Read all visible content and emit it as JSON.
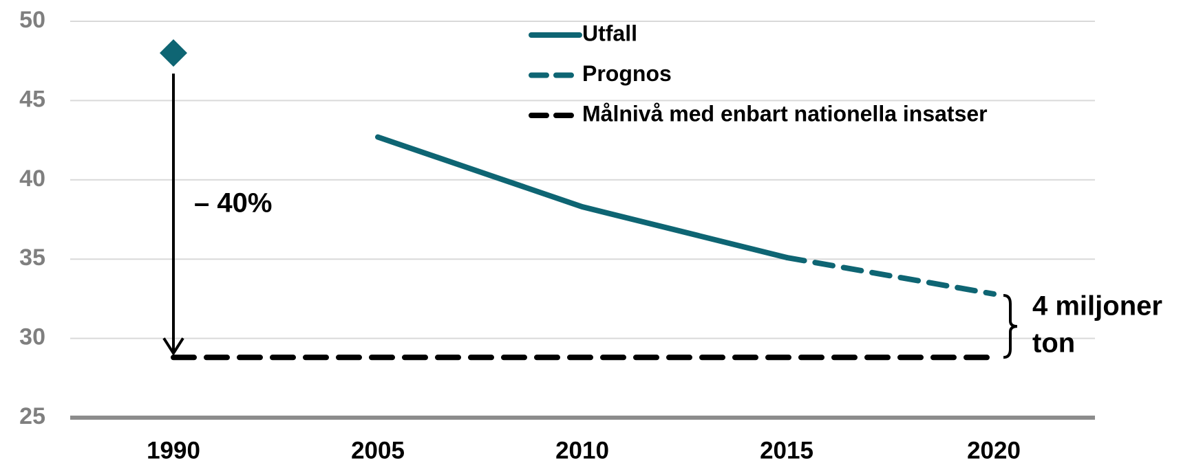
{
  "chart_data": {
    "type": "line",
    "categories": [
      "1990",
      "2005",
      "2010",
      "2015",
      "2020"
    ],
    "series": [
      {
        "name": "Utfall",
        "color": "#0e6573",
        "dash": "solid",
        "values": [
          null,
          42.7,
          38.3,
          35.1,
          null
        ]
      },
      {
        "name": "Prognos",
        "color": "#0e6573",
        "dash": "dashed",
        "values": [
          null,
          null,
          null,
          35.1,
          32.8
        ]
      },
      {
        "name": "Målnivå med enbart nationella insatser",
        "color": "#000000",
        "dash": "dashed",
        "values": [
          28.8,
          28.8,
          28.8,
          28.8,
          28.8
        ]
      }
    ],
    "points": [
      {
        "category_index": 0,
        "value": 48,
        "color": "#0e6573",
        "marker": "diamond"
      }
    ],
    "annotations": [
      "– 40%",
      "4 miljoner",
      "ton"
    ],
    "ylim": [
      25,
      50
    ],
    "yticks": [
      25,
      30,
      35,
      40,
      45,
      50
    ],
    "grid": true,
    "legend": "top"
  }
}
